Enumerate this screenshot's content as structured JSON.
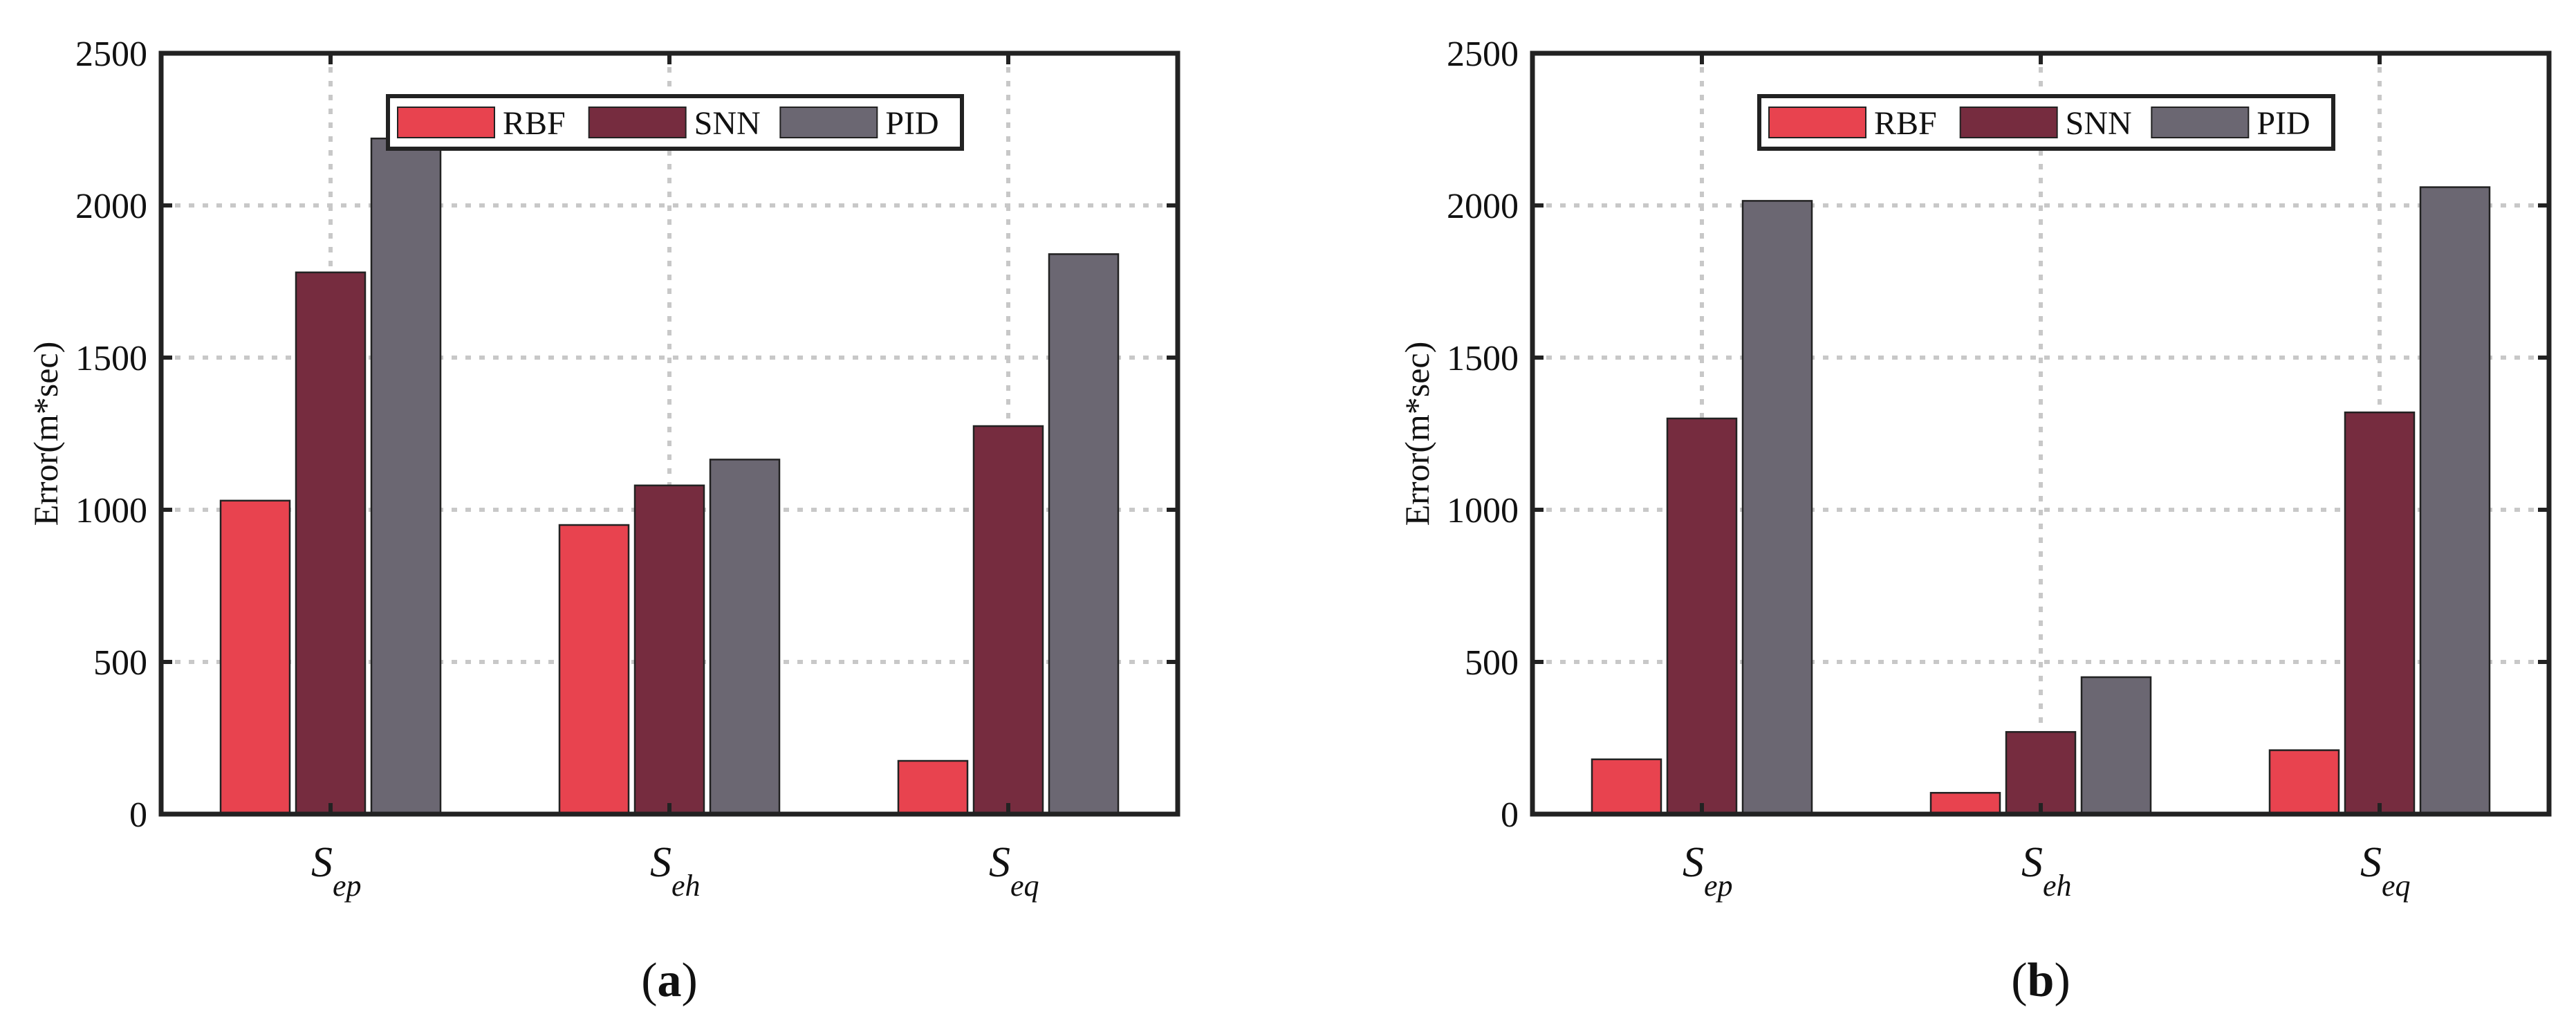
{
  "colors": {
    "RBF": "#e8434f",
    "SNN": "#762c3f",
    "PID": "#6b6772",
    "grid": "#c8c8c8",
    "frame": "#222222"
  },
  "chart_data": [
    {
      "type": "bar",
      "panel_label": "a",
      "categories": [
        {
          "main": "S",
          "sub": "ep"
        },
        {
          "main": "S",
          "sub": "eh"
        },
        {
          "main": "S",
          "sub": "eq"
        }
      ],
      "series": [
        {
          "name": "RBF",
          "values": [
            1030,
            950,
            175
          ]
        },
        {
          "name": "SNN",
          "values": [
            1780,
            1080,
            1275
          ]
        },
        {
          "name": "PID",
          "values": [
            2220,
            1165,
            1840
          ]
        }
      ],
      "ylabel": "Error(m*sec)",
      "ylim": [
        0,
        2500
      ],
      "yticks": [
        "0",
        "500",
        "1000",
        "1500",
        "2000",
        "2500"
      ],
      "grid": true,
      "legend_position": "top-center"
    },
    {
      "type": "bar",
      "panel_label": "b",
      "categories": [
        {
          "main": "S",
          "sub": "ep"
        },
        {
          "main": "S",
          "sub": "eh"
        },
        {
          "main": "S",
          "sub": "eq"
        }
      ],
      "series": [
        {
          "name": "RBF",
          "values": [
            180,
            70,
            210
          ]
        },
        {
          "name": "SNN",
          "values": [
            1300,
            270,
            1320
          ]
        },
        {
          "name": "PID",
          "values": [
            2015,
            450,
            2060
          ]
        }
      ],
      "ylabel": "Error(m*sec)",
      "ylim": [
        0,
        2500
      ],
      "yticks": [
        "0",
        "500",
        "1000",
        "1500",
        "2000",
        "2500"
      ],
      "grid": true,
      "legend_position": "top-center"
    }
  ]
}
